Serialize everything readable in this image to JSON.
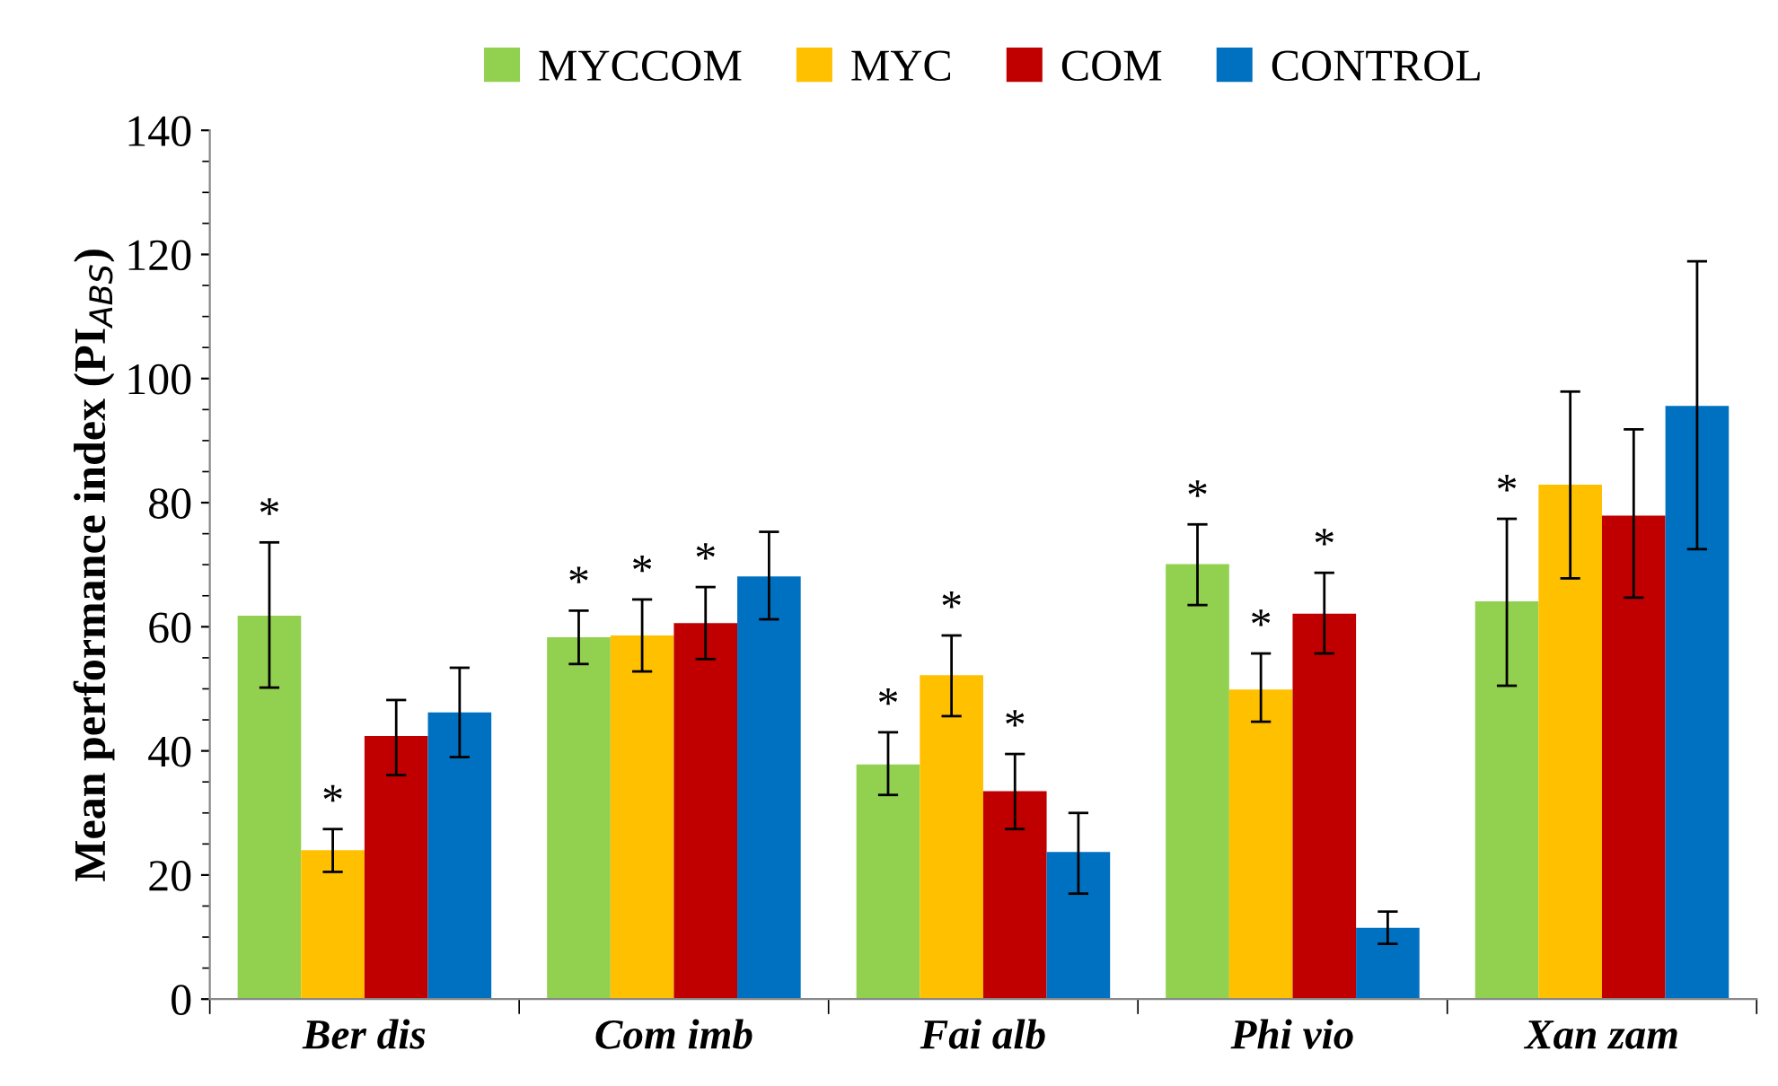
{
  "chart_data": {
    "type": "bar",
    "ylabel": "Mean performance index (PI$_{ABS}$)",
    "categories": [
      "Ber dis",
      "Com imb",
      "Fai alb",
      "Phi vio",
      "Xan zam"
    ],
    "series": [
      {
        "name": "MYCCOM",
        "color": "#92d050",
        "values": [
          61.8,
          58.3,
          37.8,
          70.1,
          64.1
        ],
        "errors": [
          [
            50.2,
            73.6
          ],
          [
            54,
            62.6
          ],
          [
            32.9,
            43
          ],
          [
            63.5,
            76.5
          ],
          [
            50.5,
            77.4
          ]
        ],
        "value_labels": [
          "*",
          "*",
          "*",
          "*",
          "*"
        ]
      },
      {
        "name": "MYC",
        "color": "#ffc000",
        "values": [
          24,
          58.6,
          52.2,
          49.9,
          82.9
        ],
        "errors": [
          [
            20.5,
            27.4
          ],
          [
            52.8,
            64.4
          ],
          [
            45.6,
            58.6
          ],
          [
            44.7,
            55.7
          ],
          [
            67.8,
            97.9
          ]
        ],
        "value_labels": [
          "*",
          "*",
          "*",
          "*",
          null
        ]
      },
      {
        "name": "COM",
        "color": "#c00000",
        "values": [
          42.4,
          60.6,
          33.5,
          62.1,
          77.9
        ],
        "errors": [
          [
            36.1,
            48.2
          ],
          [
            54.8,
            66.4
          ],
          [
            27.4,
            39.5
          ],
          [
            55.7,
            68.7
          ],
          [
            64.7,
            91.8
          ]
        ],
        "value_labels": [
          null,
          "*",
          "*",
          "*",
          null
        ]
      },
      {
        "name": "CONTROL",
        "color": "#0070c0",
        "values": [
          46.2,
          68.1,
          23.7,
          11.5,
          95.6
        ],
        "errors": [
          [
            39,
            53.4
          ],
          [
            61.2,
            75.3
          ],
          [
            17,
            30
          ],
          [
            8.9,
            14.1
          ],
          [
            72.5,
            118.9
          ]
        ]
      }
    ],
    "ylim": [
      0,
      140
    ],
    "yticks": [
      0,
      20,
      40,
      60,
      80,
      100,
      120,
      140
    ],
    "grid": false,
    "legend": "top"
  }
}
